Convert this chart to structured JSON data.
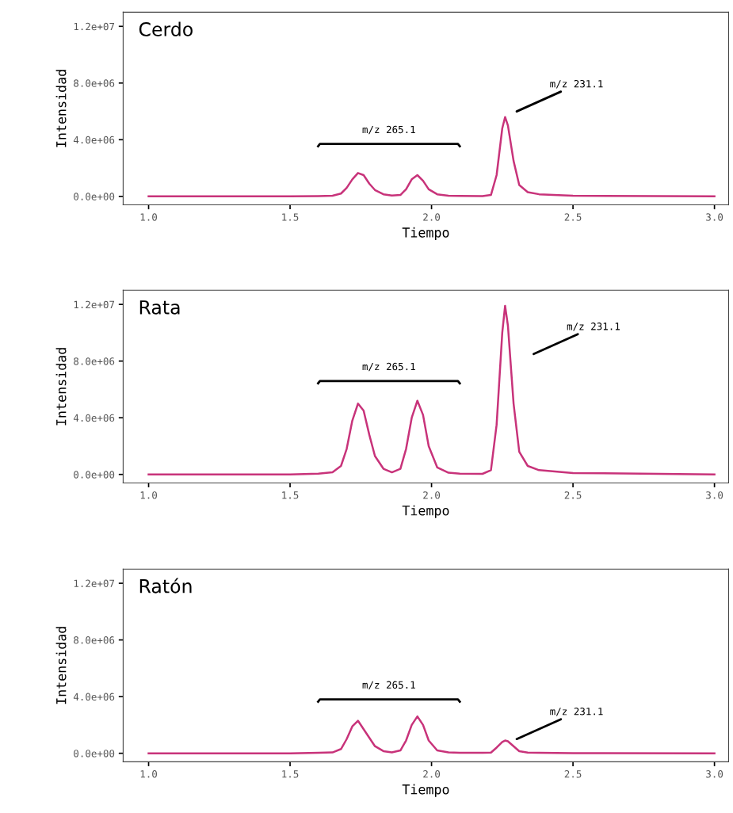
{
  "chart_data": [
    {
      "type": "line",
      "title": "Cerdo",
      "xlabel": "Tiempo",
      "ylabel": "Intensidad",
      "xlim": [
        0.91,
        3.05
      ],
      "ylim": [
        -600000,
        13000000
      ],
      "xticks": [
        {
          "value": 1.0,
          "label": "1.0"
        },
        {
          "value": 1.5,
          "label": "1.5"
        },
        {
          "value": 2.0,
          "label": "2.0"
        },
        {
          "value": 2.5,
          "label": "2.5"
        },
        {
          "value": 3.0,
          "label": "3.0"
        }
      ],
      "yticks": [
        {
          "value": 0,
          "label": "0.0e+00"
        },
        {
          "value": 4000000,
          "label": "4.0e+06"
        },
        {
          "value": 8000000,
          "label": "8.0e+06"
        },
        {
          "value": 12000000,
          "label": "1.2e+07"
        }
      ],
      "grid": false,
      "legend": false,
      "x": [
        1.0,
        1.5,
        1.6,
        1.65,
        1.68,
        1.7,
        1.72,
        1.74,
        1.76,
        1.78,
        1.8,
        1.83,
        1.86,
        1.89,
        1.91,
        1.93,
        1.95,
        1.97,
        1.99,
        2.02,
        2.06,
        2.1,
        2.18,
        2.21,
        2.23,
        2.25,
        2.26,
        2.27,
        2.29,
        2.31,
        2.34,
        2.38,
        2.5,
        3.0
      ],
      "series": [
        {
          "color": "#c8337a",
          "values": [
            0,
            0,
            20000,
            50000,
            200000,
            600000,
            1200000,
            1650000,
            1500000,
            900000,
            450000,
            150000,
            60000,
            100000,
            500000,
            1200000,
            1500000,
            1100000,
            500000,
            150000,
            50000,
            30000,
            20000,
            100000,
            1500000,
            4800000,
            5600000,
            5000000,
            2500000,
            800000,
            300000,
            150000,
            50000,
            0
          ]
        }
      ],
      "annotations": [
        "m/z 265.1",
        "m/z 231.1"
      ]
    },
    {
      "type": "line",
      "title": "Rata",
      "xlabel": "Tiempo",
      "ylabel": "Intensidad",
      "xlim": [
        0.91,
        3.05
      ],
      "ylim": [
        -600000,
        13000000
      ],
      "xticks": [
        {
          "value": 1.0,
          "label": "1.0"
        },
        {
          "value": 1.5,
          "label": "1.5"
        },
        {
          "value": 2.0,
          "label": "2.0"
        },
        {
          "value": 2.5,
          "label": "2.5"
        },
        {
          "value": 3.0,
          "label": "3.0"
        }
      ],
      "yticks": [
        {
          "value": 0,
          "label": "0.0e+00"
        },
        {
          "value": 4000000,
          "label": "4.0e+06"
        },
        {
          "value": 8000000,
          "label": "8.0e+06"
        },
        {
          "value": 12000000,
          "label": "1.2e+07"
        }
      ],
      "grid": false,
      "legend": false,
      "x": [
        1.0,
        1.5,
        1.6,
        1.65,
        1.68,
        1.7,
        1.72,
        1.74,
        1.76,
        1.78,
        1.8,
        1.83,
        1.86,
        1.89,
        1.91,
        1.93,
        1.95,
        1.97,
        1.99,
        2.02,
        2.06,
        2.1,
        2.18,
        2.21,
        2.23,
        2.25,
        2.26,
        2.27,
        2.29,
        2.31,
        2.34,
        2.38,
        2.5,
        3.0
      ],
      "series": [
        {
          "color": "#c8337a",
          "values": [
            0,
            0,
            50000,
            150000,
            600000,
            1800000,
            3800000,
            5000000,
            4500000,
            2800000,
            1300000,
            400000,
            150000,
            400000,
            1800000,
            4000000,
            5200000,
            4200000,
            2000000,
            500000,
            120000,
            60000,
            40000,
            300000,
            3500000,
            10000000,
            11900000,
            10500000,
            5000000,
            1600000,
            600000,
            300000,
            100000,
            0
          ]
        }
      ],
      "annotations": [
        "m/z 265.1",
        "m/z 231.1"
      ]
    },
    {
      "type": "line",
      "title": "Ratón",
      "xlabel": "Tiempo",
      "ylabel": "Intensidad",
      "xlim": [
        0.91,
        3.05
      ],
      "ylim": [
        -600000,
        13000000
      ],
      "xticks": [
        {
          "value": 1.0,
          "label": "1.0"
        },
        {
          "value": 1.5,
          "label": "1.5"
        },
        {
          "value": 2.0,
          "label": "2.0"
        },
        {
          "value": 2.5,
          "label": "2.5"
        },
        {
          "value": 3.0,
          "label": "3.0"
        }
      ],
      "yticks": [
        {
          "value": 0,
          "label": "0.0e+00"
        },
        {
          "value": 4000000,
          "label": "4.0e+06"
        },
        {
          "value": 8000000,
          "label": "8.0e+06"
        },
        {
          "value": 12000000,
          "label": "1.2e+07"
        }
      ],
      "grid": false,
      "legend": false,
      "x": [
        1.0,
        1.5,
        1.6,
        1.65,
        1.68,
        1.7,
        1.72,
        1.74,
        1.76,
        1.78,
        1.8,
        1.83,
        1.86,
        1.89,
        1.91,
        1.93,
        1.95,
        1.97,
        1.99,
        2.02,
        2.06,
        2.1,
        2.18,
        2.21,
        2.23,
        2.25,
        2.26,
        2.27,
        2.29,
        2.31,
        2.34,
        2.38,
        2.5,
        3.0
      ],
      "series": [
        {
          "color": "#c8337a",
          "values": [
            0,
            0,
            30000,
            60000,
            300000,
            1000000,
            1900000,
            2300000,
            1700000,
            1100000,
            500000,
            150000,
            60000,
            200000,
            900000,
            2000000,
            2600000,
            2000000,
            900000,
            200000,
            60000,
            40000,
            30000,
            50000,
            400000,
            800000,
            900000,
            850000,
            500000,
            150000,
            50000,
            30000,
            10000,
            0
          ]
        }
      ],
      "annotations": [
        "m/z 265.1",
        "m/z 231.1"
      ]
    }
  ]
}
